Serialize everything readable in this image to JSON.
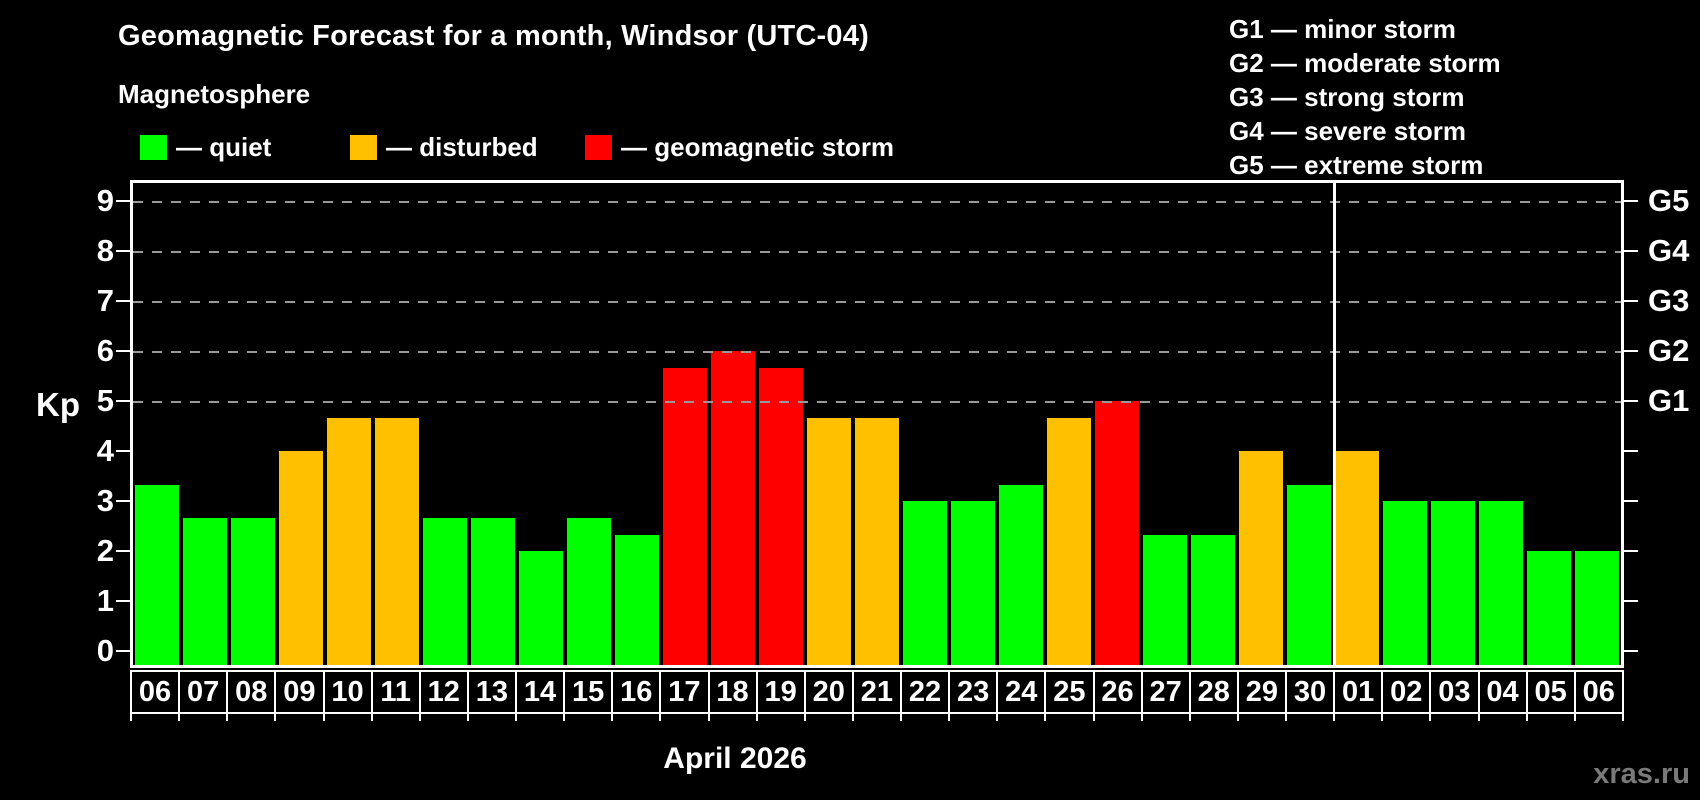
{
  "title": "Geomagnetic Forecast for a month, Windsor (UTC-04)",
  "subtitle": "Magnetosphere",
  "kp_label": "Kp",
  "month_label": "April 2026",
  "watermark": "xras.ru",
  "legend": {
    "quiet": "— quiet",
    "disturbed": "— disturbed",
    "storm": "— geomagnetic storm"
  },
  "g_legend": [
    "G1 — minor storm",
    "G2 — moderate storm",
    "G3 — strong storm",
    "G4 — severe storm",
    "G5 — extreme storm"
  ],
  "colors": {
    "quiet": "#00ff00",
    "disturbed": "#ffc000",
    "storm": "#ff0000",
    "grid": "#999999",
    "frame": "#ffffff",
    "watermark": "#7a7a7a",
    "background": "#000000"
  },
  "chart_data": {
    "type": "bar",
    "title": "Geomagnetic Forecast for a month, Windsor (UTC-04)",
    "xlabel": "April 2026",
    "ylabel": "Kp",
    "ylim": [
      0,
      9.4
    ],
    "yticks": [
      0,
      1,
      2,
      3,
      4,
      5,
      6,
      7,
      8,
      9
    ],
    "grid_levels": [
      5,
      6,
      7,
      8,
      9
    ],
    "grid_style": "dashed",
    "legend_position": "top",
    "right_axis": [
      {
        "kp": 5,
        "label": "G1"
      },
      {
        "kp": 6,
        "label": "G2"
      },
      {
        "kp": 7,
        "label": "G3"
      },
      {
        "kp": 8,
        "label": "G4"
      },
      {
        "kp": 9,
        "label": "G5"
      }
    ],
    "categories": [
      "06",
      "07",
      "08",
      "09",
      "10",
      "11",
      "12",
      "13",
      "14",
      "15",
      "16",
      "17",
      "18",
      "19",
      "20",
      "21",
      "22",
      "23",
      "24",
      "25",
      "26",
      "27",
      "28",
      "29",
      "30",
      "01",
      "02",
      "03",
      "04",
      "05",
      "06"
    ],
    "values": [
      3.33,
      2.67,
      2.67,
      4.0,
      4.67,
      4.67,
      2.67,
      2.67,
      2.0,
      2.67,
      2.33,
      5.67,
      6.0,
      5.67,
      4.67,
      4.67,
      3.0,
      3.0,
      3.33,
      4.67,
      5.0,
      2.33,
      2.33,
      4.0,
      3.33,
      4.0,
      3.0,
      3.0,
      3.0,
      2.0,
      2.0
    ],
    "statuses": [
      "quiet",
      "quiet",
      "quiet",
      "disturbed",
      "disturbed",
      "disturbed",
      "quiet",
      "quiet",
      "quiet",
      "quiet",
      "quiet",
      "storm",
      "storm",
      "storm",
      "disturbed",
      "disturbed",
      "quiet",
      "quiet",
      "quiet",
      "disturbed",
      "storm",
      "quiet",
      "quiet",
      "disturbed",
      "quiet",
      "disturbed",
      "quiet",
      "quiet",
      "quiet",
      "quiet",
      "quiet"
    ],
    "month_separator_index": 25
  }
}
